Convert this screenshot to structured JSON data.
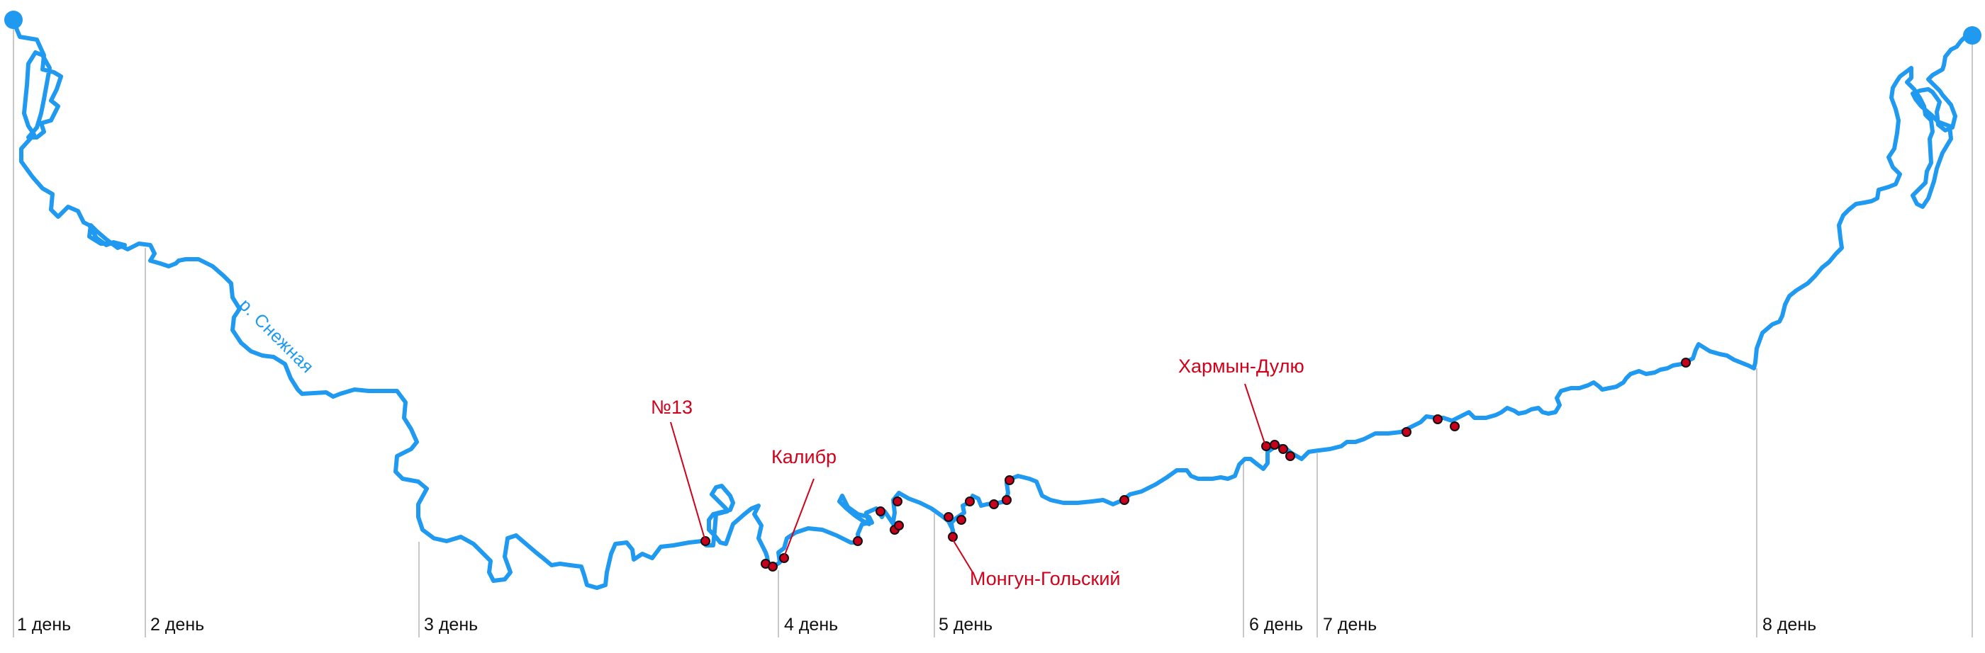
{
  "colors": {
    "river": "#1f9af0",
    "rapid_dot": "#c8001c",
    "rapid_label": "#d0021b",
    "day_line": "#c8c8c8",
    "text": "#111111"
  },
  "river": {
    "name": "р. Снежная"
  },
  "days": [
    {
      "label": "1 день"
    },
    {
      "label": "2 день"
    },
    {
      "label": "3 день"
    },
    {
      "label": "4 день"
    },
    {
      "label": "5 день"
    },
    {
      "label": "6 день"
    },
    {
      "label": "7 день"
    },
    {
      "label": "8 день"
    }
  ],
  "rapids": [
    {
      "label": "№13"
    },
    {
      "label": "Калибр"
    },
    {
      "label": "Монгун-Гольский"
    },
    {
      "label": "Хармын-Дулю"
    }
  ],
  "endpoints": [
    {
      "name": "start"
    },
    {
      "name": "finish"
    }
  ]
}
